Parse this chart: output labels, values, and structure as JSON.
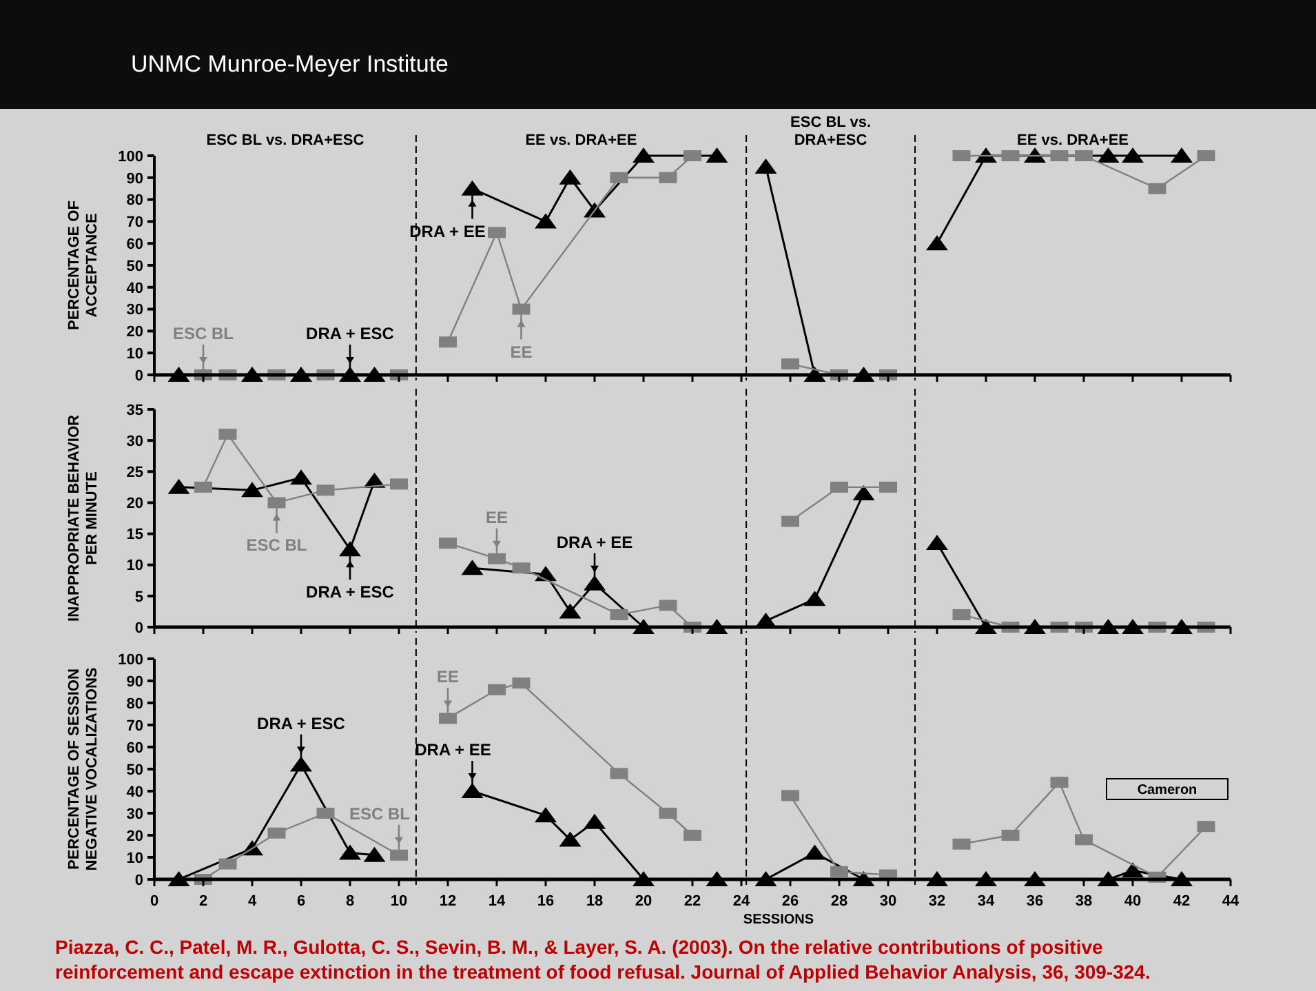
{
  "chart_data": [
    {
      "type": "line",
      "title": "UNMC Munroe-Meyer Institute",
      "ylabel": "PERCENTAGE OF\nACCEPTANCE",
      "xlim": [
        0,
        44
      ],
      "xticks": [
        0,
        2,
        4,
        6,
        8,
        10,
        12,
        14,
        16,
        18,
        20,
        22,
        24,
        26,
        28,
        30,
        32,
        34,
        36,
        38,
        40,
        42,
        44
      ],
      "ylim": [
        0,
        100
      ],
      "yticks": [
        0,
        10,
        20,
        30,
        40,
        50,
        60,
        70,
        80,
        90,
        100
      ],
      "tick_labels": "y",
      "ref_lines": [
        {
          "axis": "x",
          "value": 10.7,
          "color": "#000000",
          "line_style": "dashed"
        },
        {
          "axis": "x",
          "value": 24.2,
          "color": "#000000",
          "line_style": "dashed"
        },
        {
          "axis": "x",
          "value": 31.1,
          "color": "#000000",
          "line_style": "dashed"
        }
      ],
      "annotations": [
        "ESC BL vs. DRA+ESC",
        "EE vs. DRA+EE",
        "ESC BL vs.\nDRA+ESC",
        "EE vs. DRA+EE",
        {
          "text": "ESC BL",
          "x": 2,
          "y": 0
        },
        {
          "text": "DRA + ESC",
          "x": 8,
          "y": 0
        },
        {
          "text": "DRA + EE",
          "x": 13,
          "y": 85
        },
        {
          "text": "EE",
          "x": 15,
          "y": 30
        }
      ],
      "series": [
        {
          "color": "#000000",
          "marker": "triangle",
          "x": [
            1,
            4,
            6,
            8,
            9,
            13,
            16,
            17,
            18,
            20,
            23,
            25,
            27,
            29,
            32,
            34,
            36,
            39,
            40,
            42
          ],
          "values": [
            0,
            0,
            0,
            0,
            0,
            85,
            70,
            90,
            75,
            100,
            100,
            95,
            0,
            0,
            60,
            100,
            100,
            100,
            100,
            100
          ]
        },
        {
          "color": "#808080",
          "marker": "square",
          "x": [
            2,
            3,
            5,
            7,
            10,
            12,
            14,
            15,
            19,
            21,
            22,
            26,
            28,
            30,
            33,
            35,
            37,
            38,
            41,
            43
          ],
          "values": [
            0,
            0,
            0,
            0,
            0,
            15,
            65,
            30,
            90,
            90,
            100,
            5,
            0,
            0,
            100,
            100,
            100,
            100,
            85,
            100
          ]
        }
      ]
    },
    {
      "type": "line",
      "ylabel": "INAPPROPRIATE BEHAVIOR\nPER MINUTE",
      "xlim": [
        0,
        44
      ],
      "xticks": [
        0,
        2,
        4,
        6,
        8,
        10,
        12,
        14,
        16,
        18,
        20,
        22,
        24,
        26,
        28,
        30,
        32,
        34,
        36,
        38,
        40,
        42,
        44
      ],
      "ylim": [
        0,
        35
      ],
      "yticks": [
        0,
        5,
        10,
        15,
        20,
        25,
        30,
        35
      ],
      "tick_labels": "y",
      "ref_lines": [
        {
          "axis": "x",
          "value": 10.7,
          "color": "#000000",
          "line_style": "dashed"
        },
        {
          "axis": "x",
          "value": 24.2,
          "color": "#000000",
          "line_style": "dashed"
        },
        {
          "axis": "x",
          "value": 31.1,
          "color": "#000000",
          "line_style": "dashed"
        }
      ],
      "annotations": [
        {
          "text": "ESC BL",
          "x": 5,
          "y": 20
        },
        {
          "text": "DRA + ESC",
          "x": 8,
          "y": 12.5
        },
        {
          "text": "EE",
          "x": 14,
          "y": 11
        },
        {
          "text": "DRA + EE",
          "x": 18,
          "y": 7
        }
      ],
      "series": [
        {
          "color": "#000000",
          "marker": "triangle",
          "x": [
            1,
            4,
            6,
            8,
            9,
            13,
            16,
            17,
            18,
            20,
            23,
            25,
            27,
            29,
            32,
            34,
            36,
            39,
            40,
            42
          ],
          "values": [
            22.5,
            22,
            24,
            12.5,
            23.5,
            9.5,
            8.5,
            2.5,
            7,
            0,
            0,
            1,
            4.5,
            21.5,
            13.5,
            0,
            0,
            0,
            0,
            0
          ]
        },
        {
          "color": "#808080",
          "marker": "square",
          "x": [
            2,
            3,
            5,
            7,
            10,
            12,
            14,
            15,
            19,
            21,
            22,
            26,
            28,
            30,
            33,
            35,
            37,
            38,
            41,
            43
          ],
          "values": [
            22.5,
            31,
            20,
            22,
            23,
            13.5,
            11,
            9.5,
            2,
            3.5,
            0,
            17,
            22.5,
            22.5,
            2,
            0,
            0,
            0,
            0,
            0
          ]
        }
      ]
    },
    {
      "type": "line",
      "ylabel": "PERCENTAGE OF SESSION\nNEGATIVE VOCALIZATIONS",
      "xlabel": "SESSIONS",
      "xlim": [
        0,
        44
      ],
      "xticks": [
        0,
        2,
        4,
        6,
        8,
        10,
        12,
        14,
        16,
        18,
        20,
        22,
        24,
        26,
        28,
        30,
        32,
        34,
        36,
        38,
        40,
        42,
        44
      ],
      "ylim": [
        0,
        100
      ],
      "yticks": [
        0,
        10,
        20,
        30,
        40,
        50,
        60,
        70,
        80,
        90,
        100
      ],
      "ref_lines": [
        {
          "axis": "x",
          "value": 10.7,
          "color": "#000000",
          "line_style": "dashed"
        },
        {
          "axis": "x",
          "value": 24.2,
          "color": "#000000",
          "line_style": "dashed"
        },
        {
          "axis": "x",
          "value": 31.1,
          "color": "#000000",
          "line_style": "dashed"
        }
      ],
      "annotations": [
        "Cameron",
        "Piazza, C. C., Patel, M. R., Gulotta, C. S., Sevin, B. M., & Layer, S. A. (2003). On the relative contributions of positive reinforcement and escape extinction in the treatment of food refusal. Journal of Applied Behavior Analysis, 36, 309-324.",
        {
          "text": "DRA + ESC",
          "x": 6,
          "y": 52
        },
        {
          "text": "ESC BL",
          "x": 10,
          "y": 11
        },
        {
          "text": "EE",
          "x": 12,
          "y": 73
        },
        {
          "text": "DRA + EE",
          "x": 13,
          "y": 40
        }
      ],
      "series": [
        {
          "color": "#000000",
          "marker": "triangle",
          "x": [
            1,
            4,
            6,
            8,
            9,
            13,
            16,
            17,
            18,
            20,
            23,
            25,
            27,
            29,
            32,
            34,
            36,
            39,
            40,
            42
          ],
          "values": [
            0,
            14,
            52,
            12,
            11,
            40,
            29,
            18,
            26,
            0,
            0,
            0,
            12,
            0,
            0,
            0,
            0,
            0,
            4,
            0
          ]
        },
        {
          "color": "#808080",
          "marker": "square",
          "x": [
            2,
            3,
            5,
            7,
            10,
            12,
            14,
            15,
            19,
            21,
            22,
            26,
            28,
            30,
            33,
            35,
            37,
            38,
            41,
            43
          ],
          "values": [
            0,
            7,
            21,
            30,
            11,
            73,
            86,
            89,
            48,
            30,
            20,
            38,
            3.5,
            2,
            16,
            20,
            44,
            18,
            1,
            24
          ]
        }
      ]
    }
  ]
}
